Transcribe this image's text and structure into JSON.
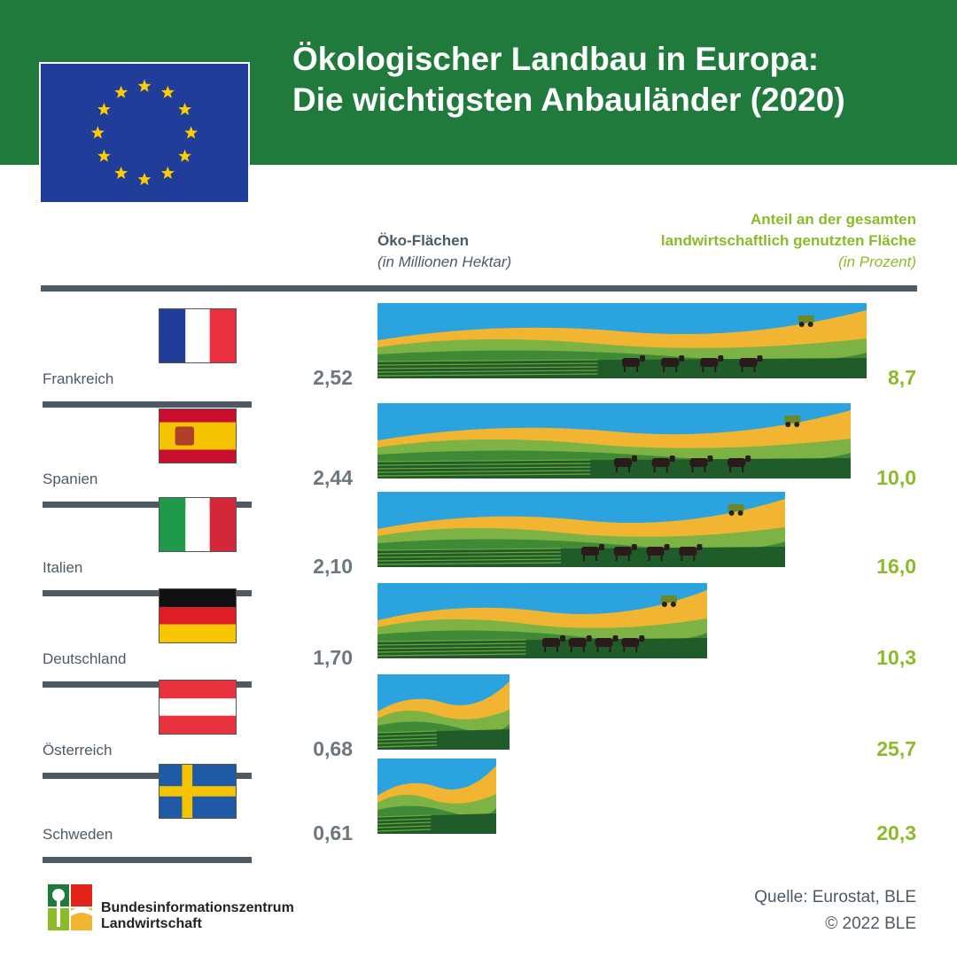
{
  "title": {
    "line1": "Ökologischer Landbau in Europa:",
    "line2": "Die wichtigsten Anbauländer (2020)"
  },
  "header": {
    "area_label": "Öko-Flächen",
    "area_unit": "(in Millionen Hektar)",
    "share_label_line1": "Anteil an der gesamten",
    "share_label_line2": "landwirtschaftlich genutzten Fläche",
    "share_unit": "(in Prozent)"
  },
  "rows": [
    {
      "country": "Frankreich",
      "area": "2,52",
      "share": "8,7"
    },
    {
      "country": "Spanien",
      "area": "2,44",
      "share": "10,0"
    },
    {
      "country": "Italien",
      "area": "2,10",
      "share": "16,0"
    },
    {
      "country": "Deutschland",
      "area": "1,70",
      "share": "10,3"
    },
    {
      "country": "Österreich",
      "area": "0,68",
      "share": "25,7"
    },
    {
      "country": "Schweden",
      "area": "0,61",
      "share": "20,3"
    }
  ],
  "chart_data": {
    "type": "bar",
    "categories": [
      "Frankreich",
      "Spanien",
      "Italien",
      "Deutschland",
      "Österreich",
      "Schweden"
    ],
    "series": [
      {
        "name": "Öko-Flächen",
        "values": [
          2.52,
          2.44,
          2.1,
          1.7,
          0.68,
          0.61
        ]
      },
      {
        "name": "Anteil an der gesamten landwirtschaftlich genutzten Fläche",
        "values": [
          8.7,
          10.0,
          16.0,
          10.3,
          25.7,
          20.3
        ]
      }
    ],
    "title": "Ökologischer Landbau in Europa: Die wichtigsten Anbauländer (2020)",
    "xlabel": "Öko-Flächen (in Millionen Hektar)",
    "ylabel": "",
    "xlim": [
      0,
      2.52
    ],
    "orientation": "horizontal"
  },
  "footer": {
    "org_line1": "Bundesinformationszentrum",
    "org_line2": "Landwirtschaft",
    "source": "Quelle: Eurostat, BLE",
    "copyright": "© 2022 BLE"
  },
  "colors": {
    "banner": "#1f7a3c",
    "accent_green": "#8bbb2a",
    "text_gray": "#4d5a63",
    "sky": "#2aa3df",
    "field_yellow": "#f2b531",
    "field_green": "#3f8a36",
    "dark_green": "#1f5c2a"
  },
  "icons": [
    "eu-flag",
    "flag-fr",
    "flag-es",
    "flag-it",
    "flag-de",
    "flag-at",
    "flag-se",
    "ble-logo"
  ]
}
